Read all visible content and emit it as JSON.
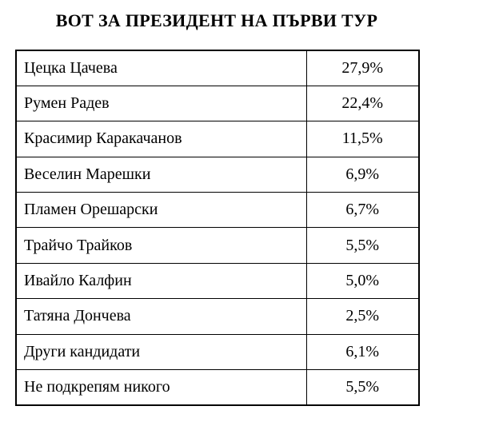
{
  "page": {
    "background": "#ffffff",
    "text_color": "#000000",
    "border_color": "#000000"
  },
  "title": "ВОТ ЗА ПРЕЗИДЕНТ НА ПЪРВИ ТУР",
  "table": {
    "rows": [
      {
        "label": "Цецка Цачева",
        "value": "27,9%"
      },
      {
        "label": "Румен Радев",
        "value": "22,4%"
      },
      {
        "label": "Красимир Каракачанов",
        "value": "11,5%"
      },
      {
        "label": "Веселин Марешки",
        "value": "6,9%"
      },
      {
        "label": "Пламен Орешарски",
        "value": "6,7%"
      },
      {
        "label": "Трайчо Трайков",
        "value": "5,5%"
      },
      {
        "label": "Ивайло Калфин",
        "value": "5,0%"
      },
      {
        "label": "Татяна Дончева",
        "value": "2,5%"
      },
      {
        "label": "Други кандидати",
        "value": "6,1%"
      },
      {
        "label": "Не подкрепям никого",
        "value": "5,5%"
      }
    ]
  },
  "chart_data": {
    "type": "table",
    "title": "ВОТ ЗА ПРЕЗИДЕНТ НА ПЪРВИ ТУР",
    "categories": [
      "Цецка Цачева",
      "Румен Радев",
      "Красимир Каракачанов",
      "Веселин Марешки",
      "Пламен Орешарски",
      "Трайчо Трайков",
      "Ивайло Калфин",
      "Татяна Дончева",
      "Други кандидати",
      "Не подкрепям никого"
    ],
    "values": [
      27.9,
      22.4,
      11.5,
      6.9,
      6.7,
      5.5,
      5.0,
      2.5,
      6.1,
      5.5
    ],
    "value_unit": "%",
    "value_format": "comma decimal separator",
    "columns": 2,
    "grid": true
  }
}
